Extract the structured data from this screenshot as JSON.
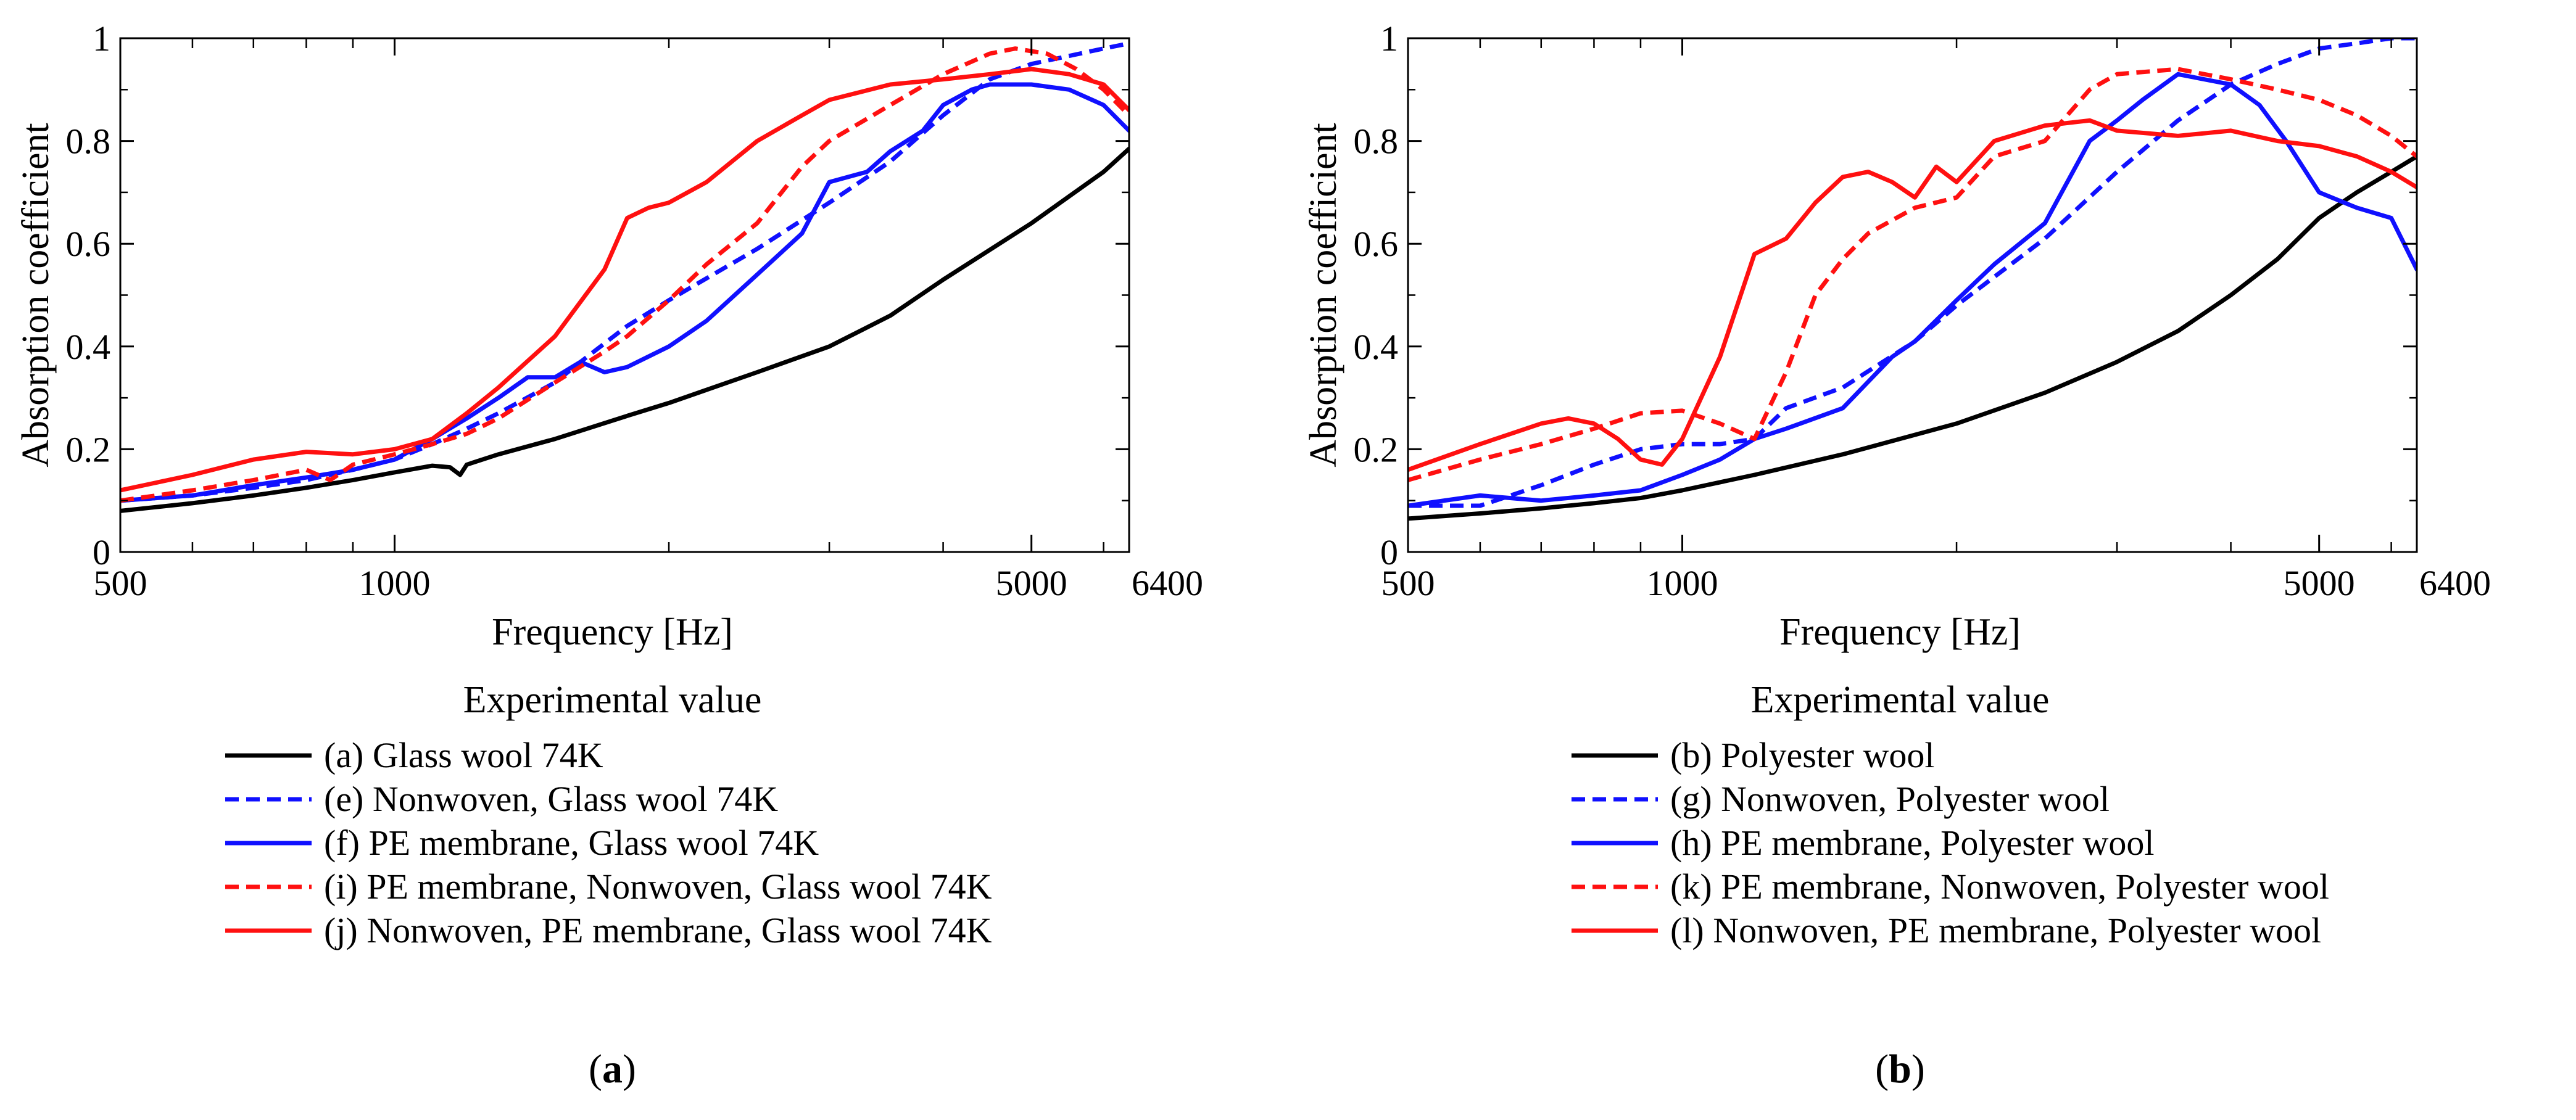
{
  "figure": {
    "panels": [
      {
        "id": "a",
        "label_prefix": "(",
        "label_letter": "a",
        "label_suffix": ")"
      },
      {
        "id": "b",
        "label_prefix": "(",
        "label_letter": "b",
        "label_suffix": ")"
      }
    ]
  },
  "colors": {
    "black": "#000000",
    "blue": "#1010ff",
    "red": "#ff1010"
  },
  "chart_data": [
    {
      "panel": "a",
      "type": "line",
      "title": "",
      "xlabel": "Frequency [Hz]",
      "ylabel": "Absorption coefficient",
      "xscale": "log",
      "xlim": [
        500,
        6400
      ],
      "ylim": [
        0,
        1
      ],
      "x_tick_labels": [
        "500",
        "1000",
        "5000",
        "6400"
      ],
      "x_tick_values": [
        500,
        1000,
        5000,
        6400
      ],
      "y_tick_labels": [
        "0",
        "0.2",
        "0.4",
        "0.6",
        "0.8",
        "1"
      ],
      "y_tick_values": [
        0,
        0.2,
        0.4,
        0.6,
        0.8,
        1.0
      ],
      "legend_title": "Experimental value",
      "legend_position": "below",
      "series": [
        {
          "name": "(a) Glass wool 74K",
          "color": "#000000",
          "dash": "solid",
          "x": [
            500,
            600,
            700,
            800,
            900,
            1000,
            1100,
            1150,
            1180,
            1200,
            1300,
            1500,
            1800,
            2000,
            2500,
            3000,
            3500,
            4000,
            5000,
            6000,
            6400
          ],
          "y": [
            0.08,
            0.095,
            0.11,
            0.125,
            0.14,
            0.155,
            0.168,
            0.165,
            0.15,
            0.17,
            0.19,
            0.22,
            0.265,
            0.29,
            0.35,
            0.4,
            0.46,
            0.53,
            0.64,
            0.74,
            0.785
          ]
        },
        {
          "name": "(e) Nonwoven, Glass wool 74K",
          "color": "#1010ff",
          "dash": "dashed",
          "x": [
            500,
            600,
            700,
            800,
            900,
            1000,
            1100,
            1200,
            1300,
            1500,
            1600,
            1800,
            2000,
            2500,
            3000,
            3500,
            4000,
            4500,
            5000,
            6000,
            6400
          ],
          "y": [
            0.1,
            0.11,
            0.125,
            0.14,
            0.16,
            0.18,
            0.21,
            0.24,
            0.27,
            0.33,
            0.37,
            0.44,
            0.49,
            0.59,
            0.68,
            0.76,
            0.85,
            0.92,
            0.95,
            0.98,
            0.99
          ]
        },
        {
          "name": "(f) PE membrane, Glass wool 74K",
          "color": "#1010ff",
          "dash": "solid",
          "x": [
            500,
            600,
            700,
            800,
            900,
            1000,
            1100,
            1200,
            1300,
            1400,
            1500,
            1600,
            1700,
            1800,
            2000,
            2200,
            2500,
            2800,
            3000,
            3300,
            3500,
            3800,
            4000,
            4300,
            4500,
            5000,
            5500,
            6000,
            6400
          ],
          "y": [
            0.1,
            0.11,
            0.13,
            0.145,
            0.16,
            0.18,
            0.22,
            0.26,
            0.3,
            0.34,
            0.34,
            0.37,
            0.35,
            0.36,
            0.4,
            0.45,
            0.54,
            0.62,
            0.72,
            0.74,
            0.78,
            0.82,
            0.87,
            0.9,
            0.91,
            0.91,
            0.9,
            0.87,
            0.82
          ]
        },
        {
          "name": "(i) PE membrane, Nonwoven, Glass wool 74K",
          "color": "#ff1010",
          "dash": "dashed",
          "x": [
            500,
            600,
            700,
            800,
            850,
            900,
            1000,
            1100,
            1200,
            1300,
            1500,
            1700,
            1800,
            2000,
            2200,
            2500,
            2800,
            3000,
            3500,
            4000,
            4500,
            4800,
            5200,
            5600,
            6000,
            6400
          ],
          "y": [
            0.1,
            0.12,
            0.14,
            0.16,
            0.14,
            0.17,
            0.19,
            0.21,
            0.23,
            0.26,
            0.33,
            0.39,
            0.42,
            0.49,
            0.56,
            0.64,
            0.75,
            0.8,
            0.87,
            0.93,
            0.97,
            0.98,
            0.97,
            0.94,
            0.9,
            0.85
          ]
        },
        {
          "name": "(j) Nonwoven, PE membrane, Glass wool 74K",
          "color": "#ff1010",
          "dash": "solid",
          "x": [
            500,
            600,
            700,
            800,
            900,
            1000,
            1100,
            1200,
            1300,
            1500,
            1700,
            1800,
            1900,
            2000,
            2200,
            2500,
            2800,
            3000,
            3500,
            4000,
            4500,
            5000,
            5500,
            6000,
            6400
          ],
          "y": [
            0.12,
            0.15,
            0.18,
            0.195,
            0.19,
            0.2,
            0.22,
            0.27,
            0.32,
            0.42,
            0.55,
            0.65,
            0.67,
            0.68,
            0.72,
            0.8,
            0.85,
            0.88,
            0.91,
            0.92,
            0.93,
            0.94,
            0.93,
            0.91,
            0.86
          ]
        }
      ]
    },
    {
      "panel": "b",
      "type": "line",
      "title": "",
      "xlabel": "Frequency [Hz]",
      "ylabel": "Absorption coefficient",
      "xscale": "log",
      "xlim": [
        500,
        6400
      ],
      "ylim": [
        0,
        1
      ],
      "x_tick_labels": [
        "500",
        "1000",
        "5000",
        "6400"
      ],
      "x_tick_values": [
        500,
        1000,
        5000,
        6400
      ],
      "y_tick_labels": [
        "0",
        "0.2",
        "0.4",
        "0.6",
        "0.8",
        "1"
      ],
      "y_tick_values": [
        0,
        0.2,
        0.4,
        0.6,
        0.8,
        1.0
      ],
      "legend_title": "Experimental value",
      "legend_position": "below",
      "series": [
        {
          "name": "(b) Polyester wool",
          "color": "#000000",
          "dash": "solid",
          "x": [
            500,
            600,
            700,
            800,
            900,
            1000,
            1200,
            1500,
            2000,
            2500,
            3000,
            3500,
            4000,
            4500,
            5000,
            5500,
            6000,
            6400
          ],
          "y": [
            0.065,
            0.075,
            0.085,
            0.095,
            0.105,
            0.12,
            0.15,
            0.19,
            0.25,
            0.31,
            0.37,
            0.43,
            0.5,
            0.57,
            0.65,
            0.7,
            0.74,
            0.77
          ]
        },
        {
          "name": "(g) Nonwoven, Polyester wool",
          "color": "#1010ff",
          "dash": "dashed",
          "x": [
            500,
            600,
            700,
            800,
            900,
            1000,
            1100,
            1200,
            1300,
            1500,
            1800,
            2000,
            2500,
            3000,
            3500,
            4000,
            4500,
            5000,
            5500,
            6000,
            6400
          ],
          "y": [
            0.09,
            0.09,
            0.13,
            0.17,
            0.2,
            0.21,
            0.21,
            0.22,
            0.28,
            0.32,
            0.41,
            0.48,
            0.61,
            0.74,
            0.84,
            0.91,
            0.95,
            0.98,
            0.99,
            1.0,
            1.0
          ]
        },
        {
          "name": "(h) PE membrane, Polyester wool",
          "color": "#1010ff",
          "dash": "solid",
          "x": [
            500,
            600,
            700,
            800,
            900,
            1000,
            1100,
            1200,
            1300,
            1500,
            1700,
            1800,
            2000,
            2200,
            2500,
            2800,
            3000,
            3200,
            3500,
            4000,
            4300,
            4600,
            5000,
            5500,
            6000,
            6400
          ],
          "y": [
            0.09,
            0.11,
            0.1,
            0.11,
            0.12,
            0.15,
            0.18,
            0.22,
            0.24,
            0.28,
            0.38,
            0.41,
            0.49,
            0.56,
            0.64,
            0.8,
            0.84,
            0.88,
            0.93,
            0.91,
            0.87,
            0.8,
            0.7,
            0.67,
            0.65,
            0.55
          ]
        },
        {
          "name": "(k) PE membrane, Nonwoven, Polyester wool",
          "color": "#ff1010",
          "dash": "dashed",
          "x": [
            500,
            600,
            700,
            800,
            900,
            1000,
            1100,
            1200,
            1300,
            1400,
            1500,
            1600,
            1800,
            2000,
            2200,
            2500,
            2800,
            3000,
            3500,
            4000,
            4500,
            5000,
            5500,
            6000,
            6400
          ],
          "y": [
            0.14,
            0.18,
            0.21,
            0.24,
            0.27,
            0.275,
            0.25,
            0.22,
            0.35,
            0.5,
            0.57,
            0.62,
            0.67,
            0.69,
            0.77,
            0.8,
            0.9,
            0.93,
            0.94,
            0.92,
            0.9,
            0.88,
            0.85,
            0.81,
            0.77
          ]
        },
        {
          "name": "(l) Nonwoven, PE membrane, Polyester wool",
          "color": "#ff1010",
          "dash": "solid",
          "x": [
            500,
            600,
            700,
            750,
            800,
            850,
            900,
            950,
            1000,
            1100,
            1200,
            1300,
            1400,
            1500,
            1600,
            1700,
            1800,
            1900,
            2000,
            2200,
            2500,
            2800,
            3000,
            3500,
            4000,
            4500,
            5000,
            5500,
            6000,
            6400
          ],
          "y": [
            0.16,
            0.21,
            0.25,
            0.26,
            0.25,
            0.22,
            0.18,
            0.17,
            0.22,
            0.38,
            0.58,
            0.61,
            0.68,
            0.73,
            0.74,
            0.72,
            0.69,
            0.75,
            0.72,
            0.8,
            0.83,
            0.84,
            0.82,
            0.81,
            0.82,
            0.8,
            0.79,
            0.77,
            0.74,
            0.71
          ]
        }
      ]
    }
  ]
}
